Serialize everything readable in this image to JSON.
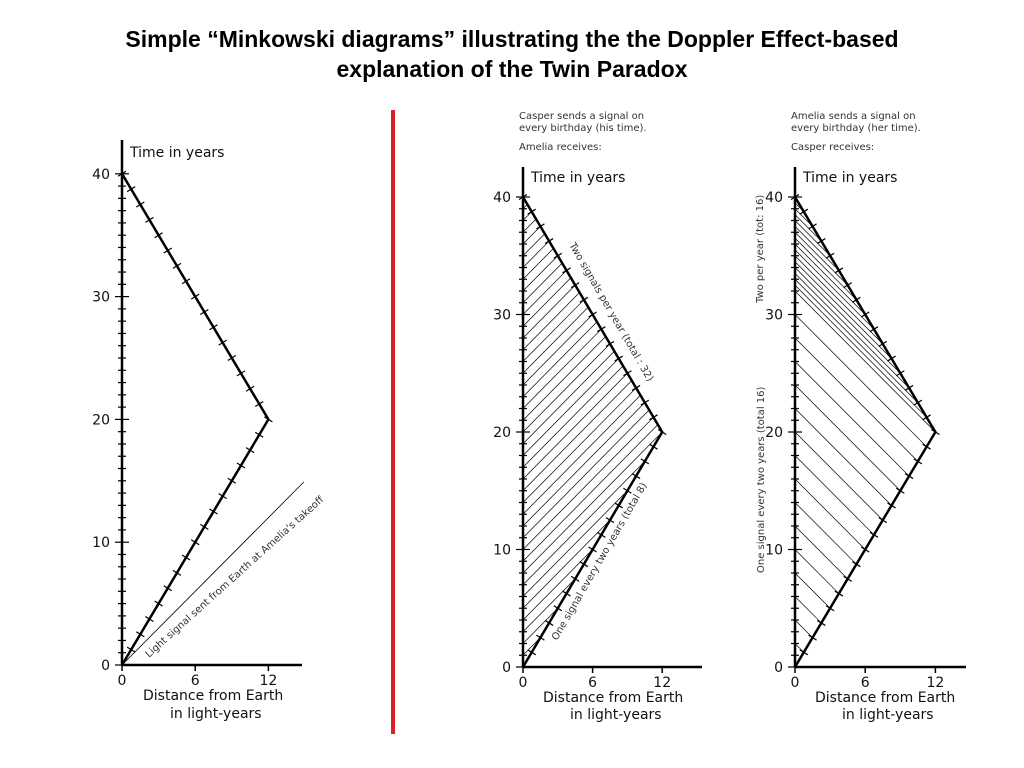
{
  "title_line1": "Simple “Minkowski diagrams” illustrating the the Doppler Effect-based",
  "title_line2": "explanation of the Twin Paradox",
  "diagrams": [
    {
      "id": "d1",
      "header": [],
      "ylabel": "Time in years",
      "xlabel_line1": "Distance from Earth",
      "xlabel_line2": "in light-years",
      "yticks": [
        "0",
        "10",
        "20",
        "30",
        "40"
      ],
      "xticks": [
        "0",
        "6",
        "12"
      ],
      "annotation": "Light signal sent from Earth at Amelia's takeoff"
    },
    {
      "id": "d2",
      "header": [
        "Casper sends a signal on",
        "every birthday (his time).",
        "Amelia receives:"
      ],
      "ylabel": "Time in years",
      "xlabel_line1": "Distance from Earth",
      "xlabel_line2": "in light-years",
      "yticks": [
        "0",
        "10",
        "20",
        "30",
        "40"
      ],
      "xticks": [
        "0",
        "6",
        "12"
      ],
      "annotation_upper": "Two signals per year (total : 32)",
      "annotation_lower": "One signal every two years (total 8)"
    },
    {
      "id": "d3",
      "header": [
        "Amelia sends a signal on",
        "every birthday (her time).",
        "Casper receives:"
      ],
      "ylabel": "Time in years",
      "xlabel_line1": "Distance from Earth",
      "xlabel_line2": "in light-years",
      "yticks": [
        "0",
        "10",
        "20",
        "30",
        "40"
      ],
      "xticks": [
        "0",
        "6",
        "12"
      ],
      "annotation_upper": "Two per year (tot: 16)",
      "annotation_lower": "One signal every two years (total 16)"
    }
  ],
  "colors": {
    "divider": "#e02020",
    "ink": "#000000"
  }
}
